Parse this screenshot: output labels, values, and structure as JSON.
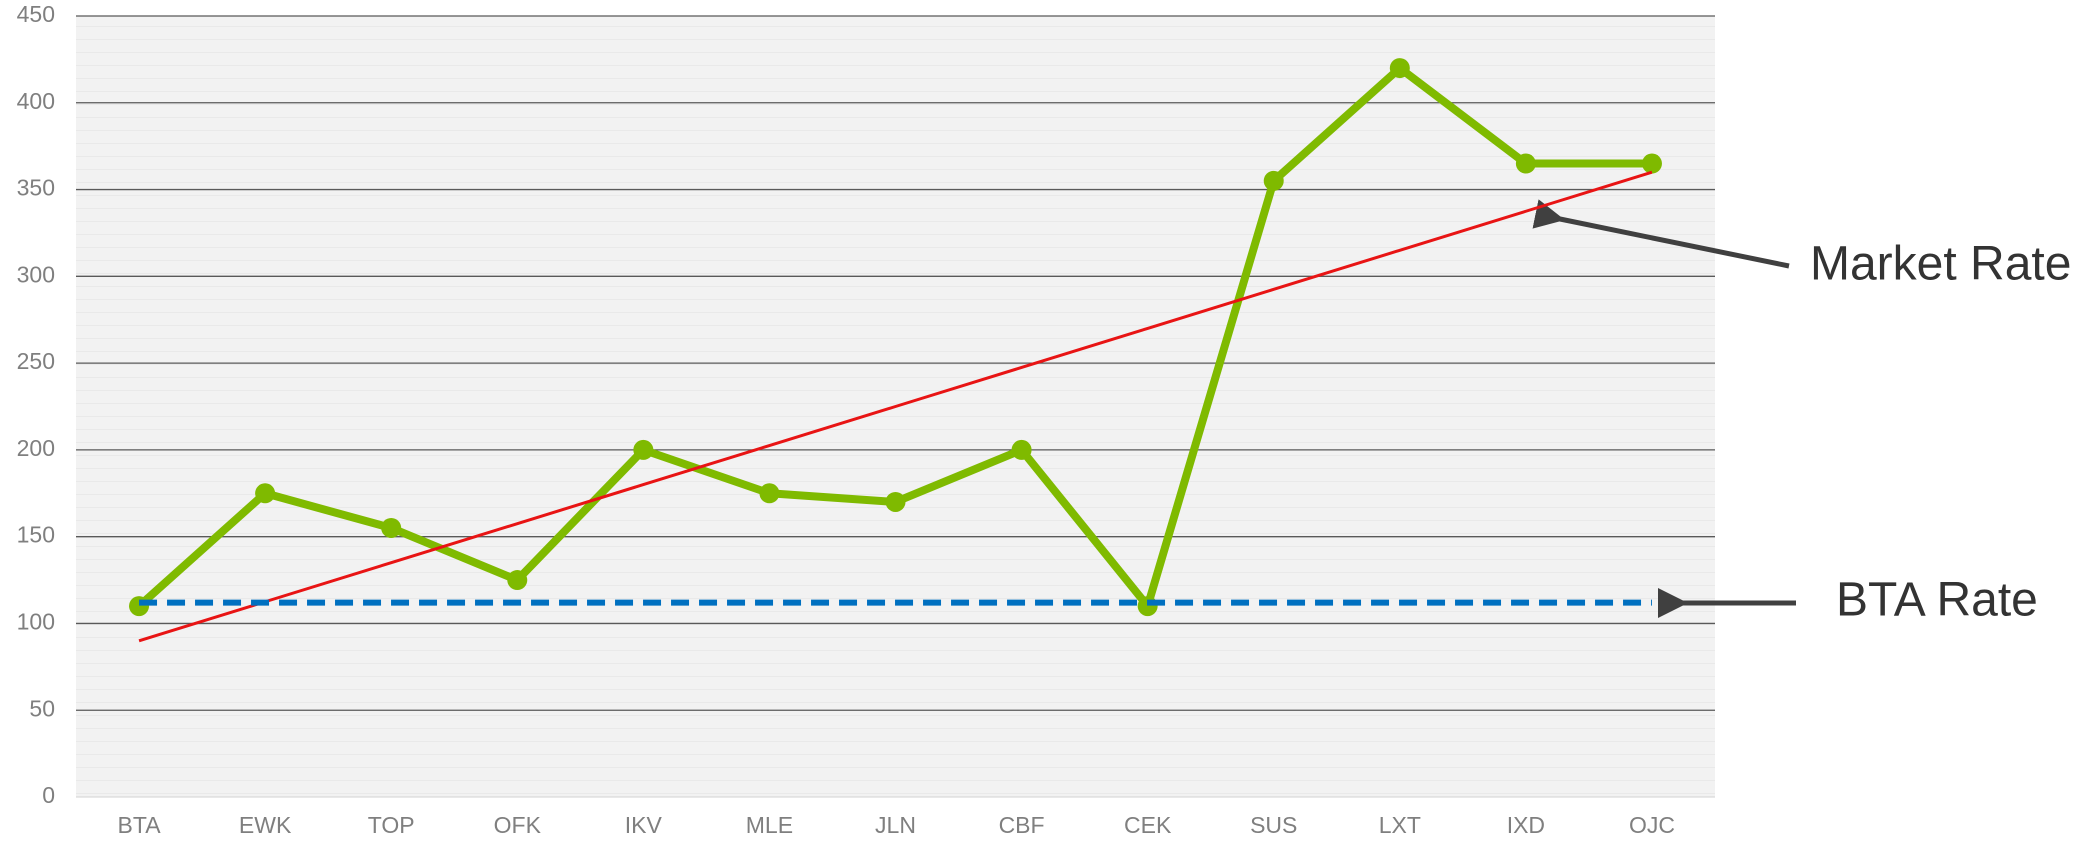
{
  "chart_data": {
    "type": "line",
    "categories": [
      "BTA",
      "EWK",
      "TOP",
      "OFK",
      "IKV",
      "MLE",
      "JLN",
      "CBF",
      "CEK",
      "SUS",
      "LXT",
      "IXD",
      "OJC"
    ],
    "series": [
      {
        "color": "#7fba00",
        "style": "solid",
        "markers": true,
        "values": [
          110,
          175,
          155,
          125,
          200,
          175,
          170,
          200,
          110,
          355,
          420,
          365,
          365
        ]
      },
      {
        "color": "#e81414",
        "style": "solid",
        "markers": false,
        "values": [
          90,
          112.5,
          135,
          157.5,
          180,
          202.5,
          225,
          247.5,
          270,
          292.5,
          315,
          337.5,
          360
        ]
      },
      {
        "color": "#0070c0",
        "style": "dashed",
        "markers": false,
        "values": [
          112,
          112,
          112,
          112,
          112,
          112,
          112,
          112,
          112,
          112,
          112,
          112,
          112
        ]
      }
    ],
    "annotations": [
      "Market Rate",
      "BTA Rate"
    ],
    "ylim": [
      0,
      450
    ],
    "yticks": [
      0,
      50,
      100,
      150,
      200,
      250,
      300,
      350,
      400,
      450
    ],
    "grid": true
  }
}
